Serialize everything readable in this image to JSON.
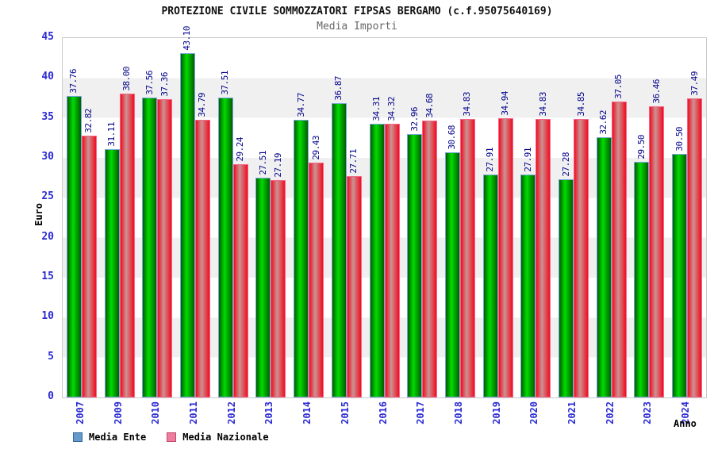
{
  "header": {
    "title": "PROTEZIONE CIVILE SOMMOZZATORI FIPSAS BERGAMO (c.f.95075640169)",
    "subtitle": "Media Importi"
  },
  "chart_data": {
    "type": "bar",
    "title": "Media Importi",
    "xlabel": "Anno",
    "ylabel": "Euro",
    "ylim": [
      0,
      45
    ],
    "y_ticks": [
      0,
      5,
      10,
      15,
      20,
      25,
      30,
      35,
      40,
      45
    ],
    "grid": "alternating-horizontal-bands",
    "band_color": "#f0f0f0",
    "legend_position": "bottom-left",
    "categories": [
      "2007",
      "2009",
      "2010",
      "2011",
      "2012",
      "2013",
      "2014",
      "2015",
      "2016",
      "2017",
      "2018",
      "2019",
      "2020",
      "2021",
      "2022",
      "2023",
      "2024"
    ],
    "series": [
      {
        "name": "Media Ente",
        "values": [
          37.76,
          31.11,
          37.56,
          43.1,
          37.51,
          27.51,
          34.77,
          36.87,
          34.31,
          32.96,
          30.68,
          27.91,
          27.91,
          27.28,
          32.62,
          29.5,
          30.5
        ],
        "bar_border": "#7aa7d8",
        "bar_gradient": [
          "#015e01",
          "#00dc00",
          "#015e01"
        ],
        "legend_fill": "#6699cc",
        "legend_border": "#336699"
      },
      {
        "name": "Media Nazionale",
        "values": [
          32.82,
          38.0,
          37.36,
          34.79,
          29.24,
          27.19,
          29.43,
          27.71,
          34.32,
          34.68,
          34.83,
          34.94,
          34.83,
          34.85,
          37.05,
          36.46,
          37.49
        ],
        "bar_border": "#f4668a",
        "bar_gradient": [
          "#f00d20",
          "#cb9393",
          "#f00d20"
        ],
        "legend_fill": "#ee7e9f",
        "legend_border": "#c04a68"
      }
    ],
    "value_label_color": "#00008b",
    "axis_label_color": "#2b2bd4"
  }
}
